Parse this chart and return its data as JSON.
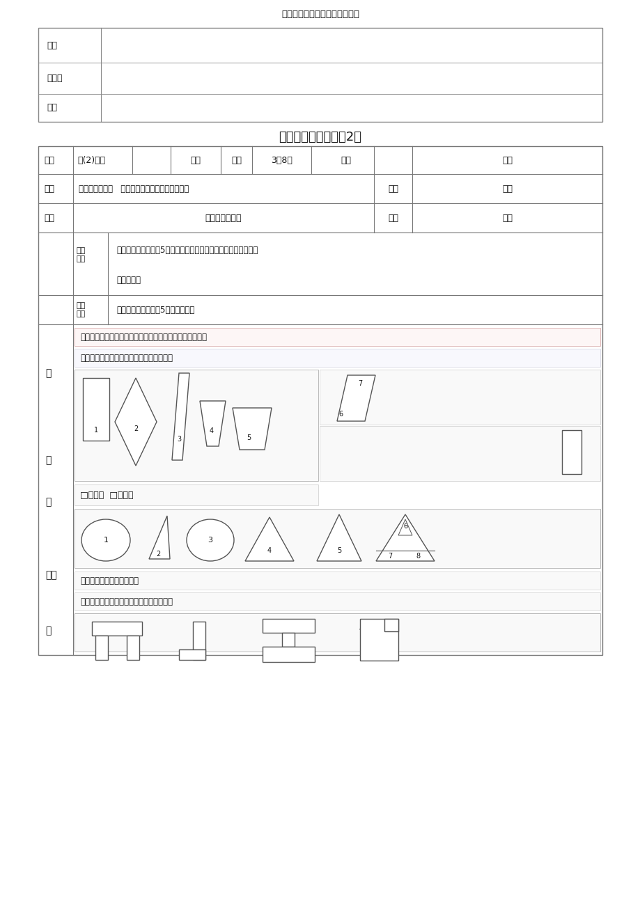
{
  "page_title": "一年级下数学培优补差工作记载",
  "bg_color": "#ffffff",
  "table1_label1": "效果",
  "table1_label2": "及优秀",
  "table1_label3": "反省",
  "section_title": "培优补差工作记录（2）",
  "row1": [
    "班级",
    "一(2)学科",
    "数学",
    "时间",
    "3月8日",
    "地址",
    "教室"
  ],
  "row2": [
    "姓名",
    "潜能生：王彬彬   袁得镜袁观桥王梦袁盈盈吴旭东",
    "类别",
    "补差"
  ],
  "row3": [
    "内容",
    "认识图形（二）",
    "形式",
    "集中"
  ],
  "train_goal_label": "训练\n目标",
  "train_goal": "能娴熟、正确地域分5种平面图形，培养学生的察看能力和优秀的",
  "train_goal2": "空间观点。",
  "train_key_label": "训练\n重点",
  "train_key": "能娴熟、正确地域分5种平面图形。",
  "sec1": "一、先认识各样立体图形，说说分别能画出什么平面图形。",
  "sec2": "然后学生先独立达成习题，最后沟通结果。",
  "checkbox": "□有（）  □有（）",
  "sec3": "（）是三角形，（）是圆。",
  "sec4": "二、把长方形涂上红色，正方形涂上绿色。",
  "left_labels_top": [
    "教"
  ],
  "left_labels_mid": [
    "训",
    "练"
  ],
  "left_labels_bot": [
    "案过",
    "程"
  ],
  "grid_color": "#777777",
  "thin_color": "#aaaaaa"
}
